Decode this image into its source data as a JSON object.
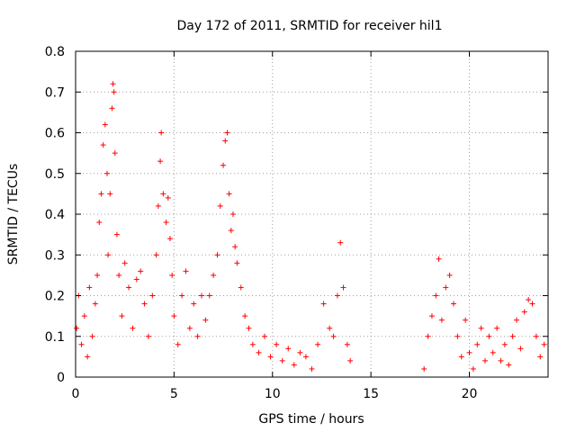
{
  "chart_data": {
    "type": "scatter",
    "title": "Day 172 of 2011, SRMTID for receiver hil1",
    "xlabel": "GPS time / hours",
    "ylabel": "SRMTID / TECUs",
    "xlim": [
      0,
      24
    ],
    "ylim": [
      0,
      0.8
    ],
    "grid": true,
    "marker": "+",
    "color": "#ff0000",
    "x_ticks": [
      0,
      5,
      10,
      15,
      20
    ],
    "x_tick_labels": [
      "0",
      "5",
      "10",
      "15",
      "20"
    ],
    "y_ticks": [
      0,
      0.1,
      0.2,
      0.3,
      0.4,
      0.5,
      0.6,
      0.7,
      0.8
    ],
    "y_tick_labels": [
      "0",
      "0.1",
      "0.2",
      "0.3",
      "0.4",
      "0.5",
      "0.6",
      "0.7",
      "0.8"
    ],
    "data_gap_hours": [
      14.0,
      17.6
    ],
    "series": [
      {
        "name": "SRMTID",
        "points": [
          [
            0.05,
            0.12
          ],
          [
            0.15,
            0.2
          ],
          [
            0.3,
            0.08
          ],
          [
            0.45,
            0.15
          ],
          [
            0.6,
            0.05
          ],
          [
            0.7,
            0.22
          ],
          [
            0.85,
            0.1
          ],
          [
            1.0,
            0.18
          ],
          [
            1.1,
            0.25
          ],
          [
            1.2,
            0.38
          ],
          [
            1.3,
            0.45
          ],
          [
            1.4,
            0.57
          ],
          [
            1.5,
            0.62
          ],
          [
            1.6,
            0.5
          ],
          [
            1.65,
            0.3
          ],
          [
            1.75,
            0.45
          ],
          [
            1.85,
            0.66
          ],
          [
            1.9,
            0.72
          ],
          [
            1.95,
            0.7
          ],
          [
            2.0,
            0.55
          ],
          [
            2.1,
            0.35
          ],
          [
            2.2,
            0.25
          ],
          [
            2.35,
            0.15
          ],
          [
            2.5,
            0.28
          ],
          [
            2.7,
            0.22
          ],
          [
            2.9,
            0.12
          ],
          [
            3.1,
            0.24
          ],
          [
            3.3,
            0.26
          ],
          [
            3.5,
            0.18
          ],
          [
            3.7,
            0.1
          ],
          [
            3.9,
            0.2
          ],
          [
            4.1,
            0.3
          ],
          [
            4.2,
            0.42
          ],
          [
            4.3,
            0.53
          ],
          [
            4.35,
            0.6
          ],
          [
            4.45,
            0.45
          ],
          [
            4.6,
            0.38
          ],
          [
            4.7,
            0.44
          ],
          [
            4.8,
            0.34
          ],
          [
            4.9,
            0.25
          ],
          [
            5.0,
            0.15
          ],
          [
            5.2,
            0.08
          ],
          [
            5.4,
            0.2
          ],
          [
            5.6,
            0.26
          ],
          [
            5.8,
            0.12
          ],
          [
            6.0,
            0.18
          ],
          [
            6.2,
            0.1
          ],
          [
            6.4,
            0.2
          ],
          [
            6.6,
            0.14
          ],
          [
            6.8,
            0.2
          ],
          [
            7.0,
            0.25
          ],
          [
            7.2,
            0.3
          ],
          [
            7.35,
            0.42
          ],
          [
            7.5,
            0.52
          ],
          [
            7.6,
            0.58
          ],
          [
            7.7,
            0.6
          ],
          [
            7.8,
            0.45
          ],
          [
            7.9,
            0.36
          ],
          [
            8.0,
            0.4
          ],
          [
            8.1,
            0.32
          ],
          [
            8.2,
            0.28
          ],
          [
            8.4,
            0.22
          ],
          [
            8.6,
            0.15
          ],
          [
            8.8,
            0.12
          ],
          [
            9.0,
            0.08
          ],
          [
            9.3,
            0.06
          ],
          [
            9.6,
            0.1
          ],
          [
            9.9,
            0.05
          ],
          [
            10.2,
            0.08
          ],
          [
            10.5,
            0.04
          ],
          [
            10.8,
            0.07
          ],
          [
            11.1,
            0.03
          ],
          [
            11.4,
            0.06
          ],
          [
            11.7,
            0.05
          ],
          [
            12.0,
            0.02
          ],
          [
            12.3,
            0.08
          ],
          [
            12.6,
            0.18
          ],
          [
            12.9,
            0.12
          ],
          [
            13.1,
            0.1
          ],
          [
            13.3,
            0.2
          ],
          [
            13.45,
            0.33
          ],
          [
            13.6,
            0.22
          ],
          [
            13.8,
            0.08
          ],
          [
            13.95,
            0.04
          ],
          [
            17.7,
            0.02
          ],
          [
            17.9,
            0.1
          ],
          [
            18.1,
            0.15
          ],
          [
            18.3,
            0.2
          ],
          [
            18.45,
            0.29
          ],
          [
            18.6,
            0.14
          ],
          [
            18.8,
            0.22
          ],
          [
            19.0,
            0.25
          ],
          [
            19.2,
            0.18
          ],
          [
            19.4,
            0.1
          ],
          [
            19.6,
            0.05
          ],
          [
            19.8,
            0.14
          ],
          [
            20.0,
            0.06
          ],
          [
            20.2,
            0.02
          ],
          [
            20.4,
            0.08
          ],
          [
            20.6,
            0.12
          ],
          [
            20.8,
            0.04
          ],
          [
            21.0,
            0.1
          ],
          [
            21.2,
            0.06
          ],
          [
            21.4,
            0.12
          ],
          [
            21.6,
            0.04
          ],
          [
            21.8,
            0.08
          ],
          [
            22.0,
            0.03
          ],
          [
            22.2,
            0.1
          ],
          [
            22.4,
            0.14
          ],
          [
            22.6,
            0.07
          ],
          [
            22.8,
            0.16
          ],
          [
            23.0,
            0.19
          ],
          [
            23.2,
            0.18
          ],
          [
            23.4,
            0.1
          ],
          [
            23.6,
            0.05
          ],
          [
            23.8,
            0.08
          ]
        ]
      }
    ]
  }
}
